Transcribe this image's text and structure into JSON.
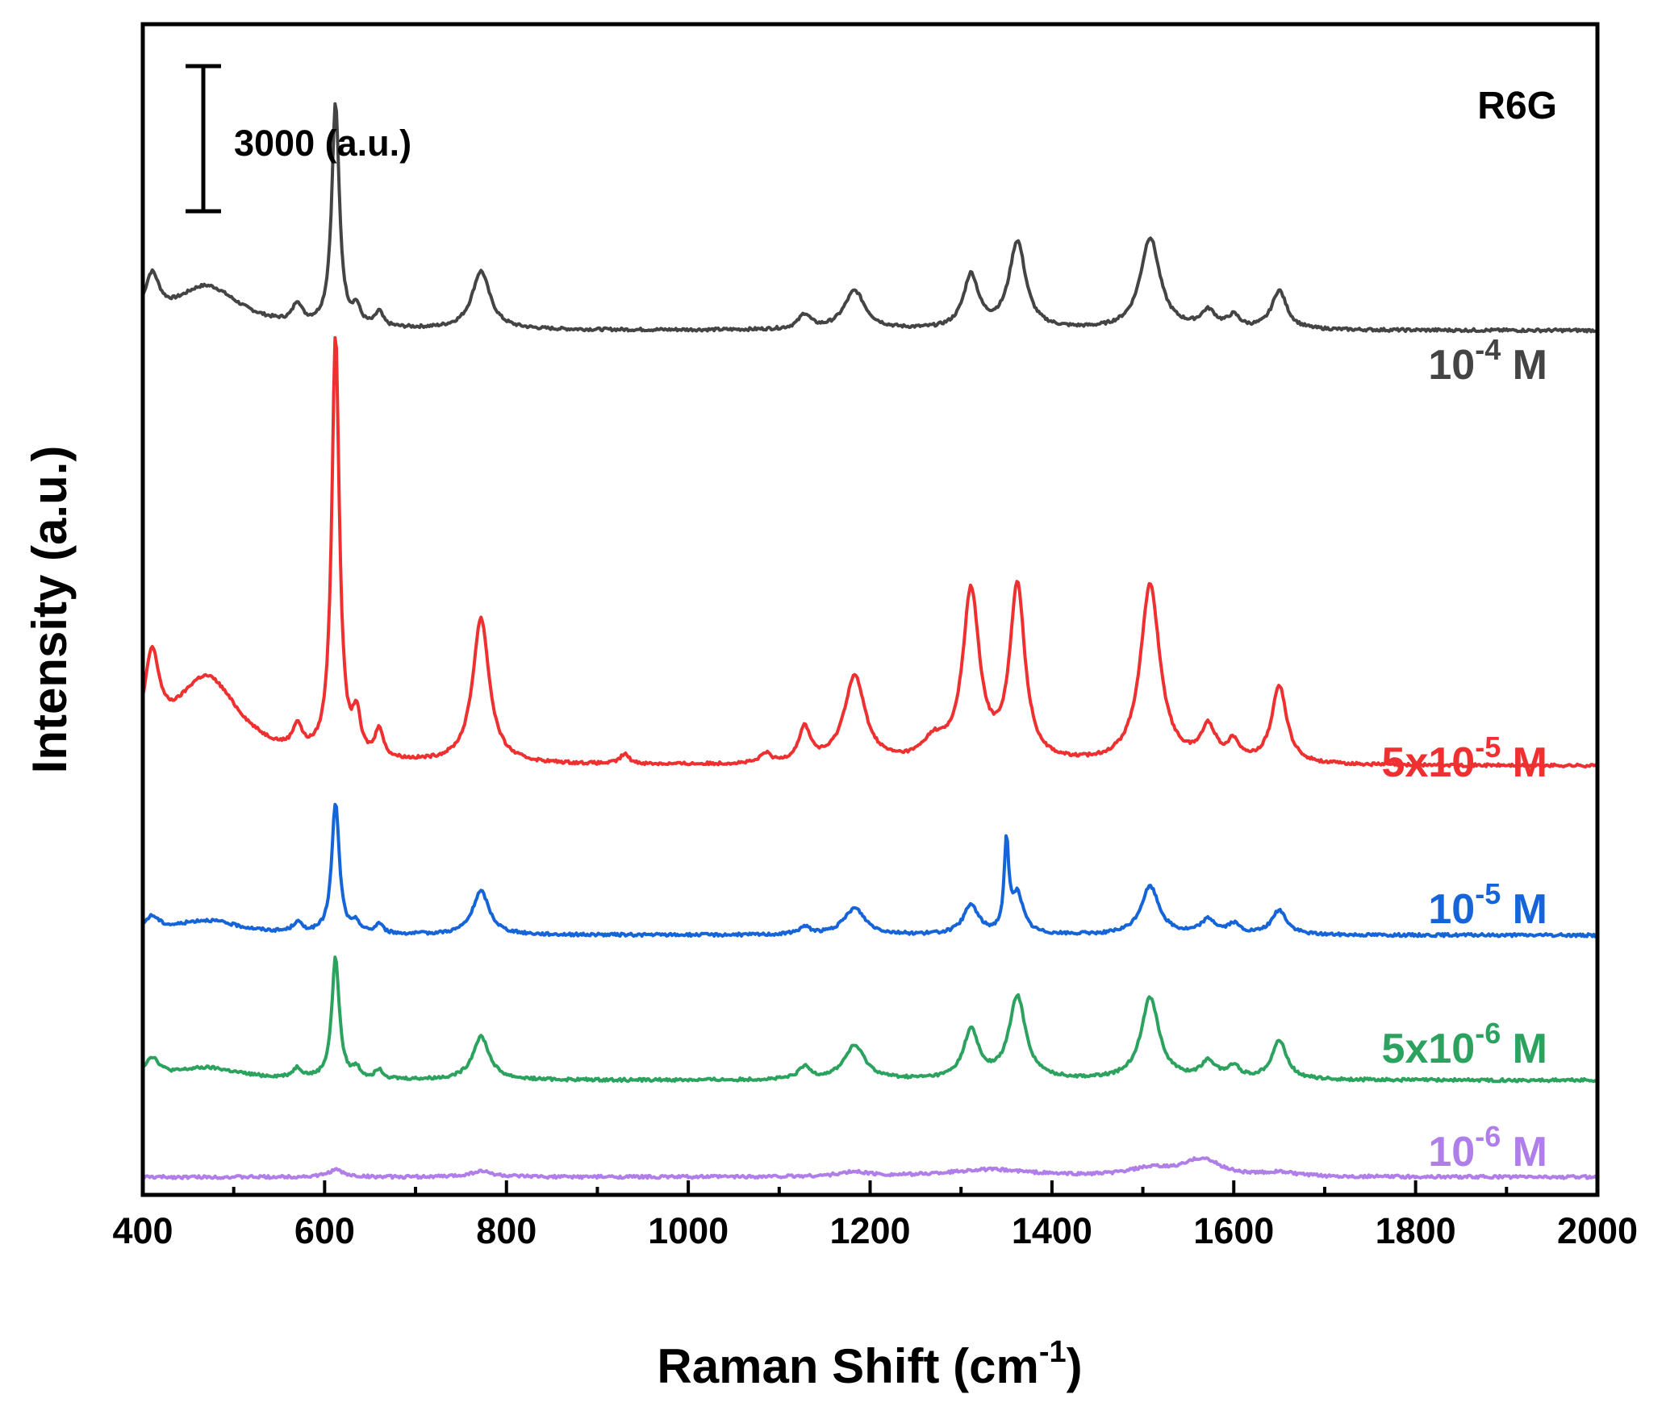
{
  "chart_data": {
    "type": "line",
    "title": "",
    "panel_label": "R6G",
    "xlabel": {
      "text": "Raman Shift (cm",
      "sup": "-1",
      "suffix": ")"
    },
    "ylabel": "Intensity (a.u.)",
    "xlim": [
      400,
      2000
    ],
    "xticks": [
      400,
      600,
      800,
      1000,
      1200,
      1400,
      1600,
      1800,
      2000
    ],
    "y_ticks_shown": false,
    "grid": false,
    "legend": "inline labels at right of each trace",
    "scale_bar": {
      "label": "3000 (a.u.)",
      "intensity": 3000
    },
    "y_units": "a.u., traces vertically offset",
    "series": [
      {
        "name_parts": {
          "prefix": "10",
          "sup": "-4",
          "suffix": " M"
        },
        "color": "#444444",
        "baseline": 27000,
        "peaks": [
          [
            612,
            4600,
            5
          ],
          [
            772,
            1200,
            12
          ],
          [
            1183,
            800,
            14
          ],
          [
            1128,
            300,
            8
          ],
          [
            1311,
            1100,
            10
          ],
          [
            1362,
            1800,
            11
          ],
          [
            1508,
            1900,
            13
          ],
          [
            1650,
            800,
            10
          ],
          [
            1572,
            350,
            10
          ],
          [
            1600,
            250,
            8
          ],
          [
            570,
            400,
            6
          ],
          [
            660,
            300,
            5
          ],
          [
            635,
            350,
            5
          ],
          [
            470,
            900,
            45
          ],
          [
            410,
            900,
            10
          ]
        ]
      },
      {
        "name_parts": {
          "prefix": "5x10",
          "sup": "-5",
          "suffix": " M"
        },
        "color": "#ee3030",
        "baseline": 18000,
        "peaks": [
          [
            612,
            8700,
            5
          ],
          [
            772,
            3000,
            11
          ],
          [
            1183,
            1800,
            14
          ],
          [
            1128,
            700,
            8
          ],
          [
            1311,
            3500,
            11
          ],
          [
            1362,
            3600,
            10
          ],
          [
            1508,
            3700,
            13
          ],
          [
            1650,
            1600,
            10
          ],
          [
            1572,
            700,
            10
          ],
          [
            1600,
            400,
            8
          ],
          [
            570,
            500,
            6
          ],
          [
            660,
            600,
            5
          ],
          [
            635,
            800,
            5
          ],
          [
            470,
            1800,
            45
          ],
          [
            410,
            1800,
            10
          ],
          [
            1270,
            400,
            15
          ],
          [
            930,
            200,
            6
          ],
          [
            1085,
            200,
            6
          ]
        ]
      },
      {
        "name_parts": {
          "prefix": "10",
          "sup": "-5",
          "suffix": " M"
        },
        "color": "#1565d8",
        "baseline": 14500,
        "peaks": [
          [
            612,
            2700,
            5
          ],
          [
            772,
            900,
            11
          ],
          [
            1183,
            550,
            14
          ],
          [
            1128,
            150,
            8
          ],
          [
            1311,
            600,
            10
          ],
          [
            1350,
            1800,
            3
          ],
          [
            1362,
            800,
            8
          ],
          [
            1508,
            1000,
            12
          ],
          [
            1650,
            500,
            10
          ],
          [
            1572,
            300,
            10
          ],
          [
            1600,
            200,
            8
          ],
          [
            570,
            200,
            6
          ],
          [
            660,
            200,
            5
          ],
          [
            635,
            200,
            5
          ],
          [
            470,
            300,
            45
          ],
          [
            410,
            300,
            10
          ]
        ]
      },
      {
        "name_parts": {
          "prefix": "5x10",
          "sup": "-6",
          "suffix": " M"
        },
        "color": "#2ca25f",
        "baseline": 11500,
        "peaks": [
          [
            612,
            2500,
            5
          ],
          [
            772,
            900,
            11
          ],
          [
            1183,
            700,
            14
          ],
          [
            1128,
            250,
            8
          ],
          [
            1311,
            1000,
            10
          ],
          [
            1362,
            1700,
            11
          ],
          [
            1508,
            1700,
            12
          ],
          [
            1650,
            800,
            10
          ],
          [
            1572,
            350,
            10
          ],
          [
            1600,
            250,
            8
          ],
          [
            570,
            200,
            6
          ],
          [
            660,
            200,
            5
          ],
          [
            635,
            200,
            5
          ],
          [
            470,
            250,
            45
          ],
          [
            410,
            400,
            10
          ]
        ]
      },
      {
        "name_parts": {
          "prefix": "10",
          "sup": "-6",
          "suffix": " M"
        },
        "color": "#b07ee8",
        "baseline": 9500,
        "peaks": [
          [
            612,
            150,
            10
          ],
          [
            772,
            120,
            15
          ],
          [
            1183,
            90,
            20
          ],
          [
            1330,
            150,
            60
          ],
          [
            1565,
            350,
            25
          ],
          [
            1508,
            150,
            30
          ],
          [
            1650,
            80,
            20
          ]
        ]
      }
    ]
  }
}
